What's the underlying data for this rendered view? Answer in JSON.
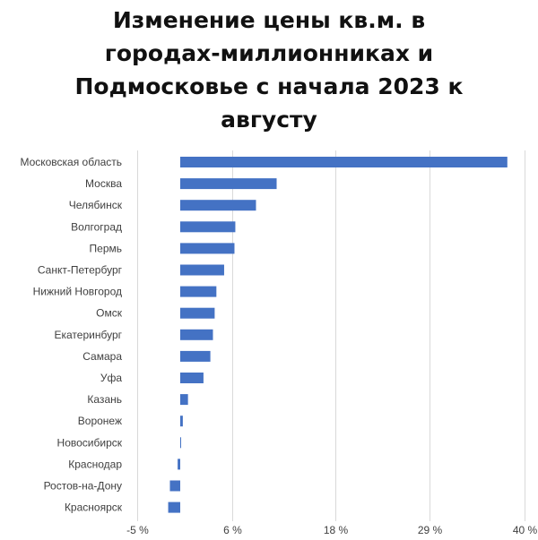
{
  "chart_data": {
    "type": "bar",
    "orientation": "horizontal",
    "title_lines": [
      "Изменение цены кв.м. в",
      "городах-миллионниках и",
      "Подмосковье с начала 2023 к",
      "августу"
    ],
    "categories": [
      "Московская область",
      "Москва",
      "Челябинск",
      "Волгоград",
      "Пермь",
      "Санкт-Петербург",
      "Нижний Новгород",
      "Омск",
      "Екатеринбург",
      "Самара",
      "Уфа",
      "Казань",
      "Воронеж",
      "Новосибирск",
      "Краснодар",
      "Ростов-на-Дону",
      "Красноярск"
    ],
    "values": [
      38.0,
      11.2,
      8.8,
      6.4,
      6.3,
      5.1,
      4.2,
      4.0,
      3.8,
      3.5,
      2.7,
      0.9,
      0.3,
      0.1,
      -0.3,
      -1.2,
      -1.4
    ],
    "unit": "%",
    "xlim": [
      -5,
      40
    ],
    "xticks": [
      -5,
      6,
      18,
      29,
      40
    ],
    "xtick_labels": [
      "-5 %",
      "6 %",
      "18 %",
      "29 %",
      "40 %"
    ],
    "grid": true,
    "bar_color": "#4472c4"
  }
}
